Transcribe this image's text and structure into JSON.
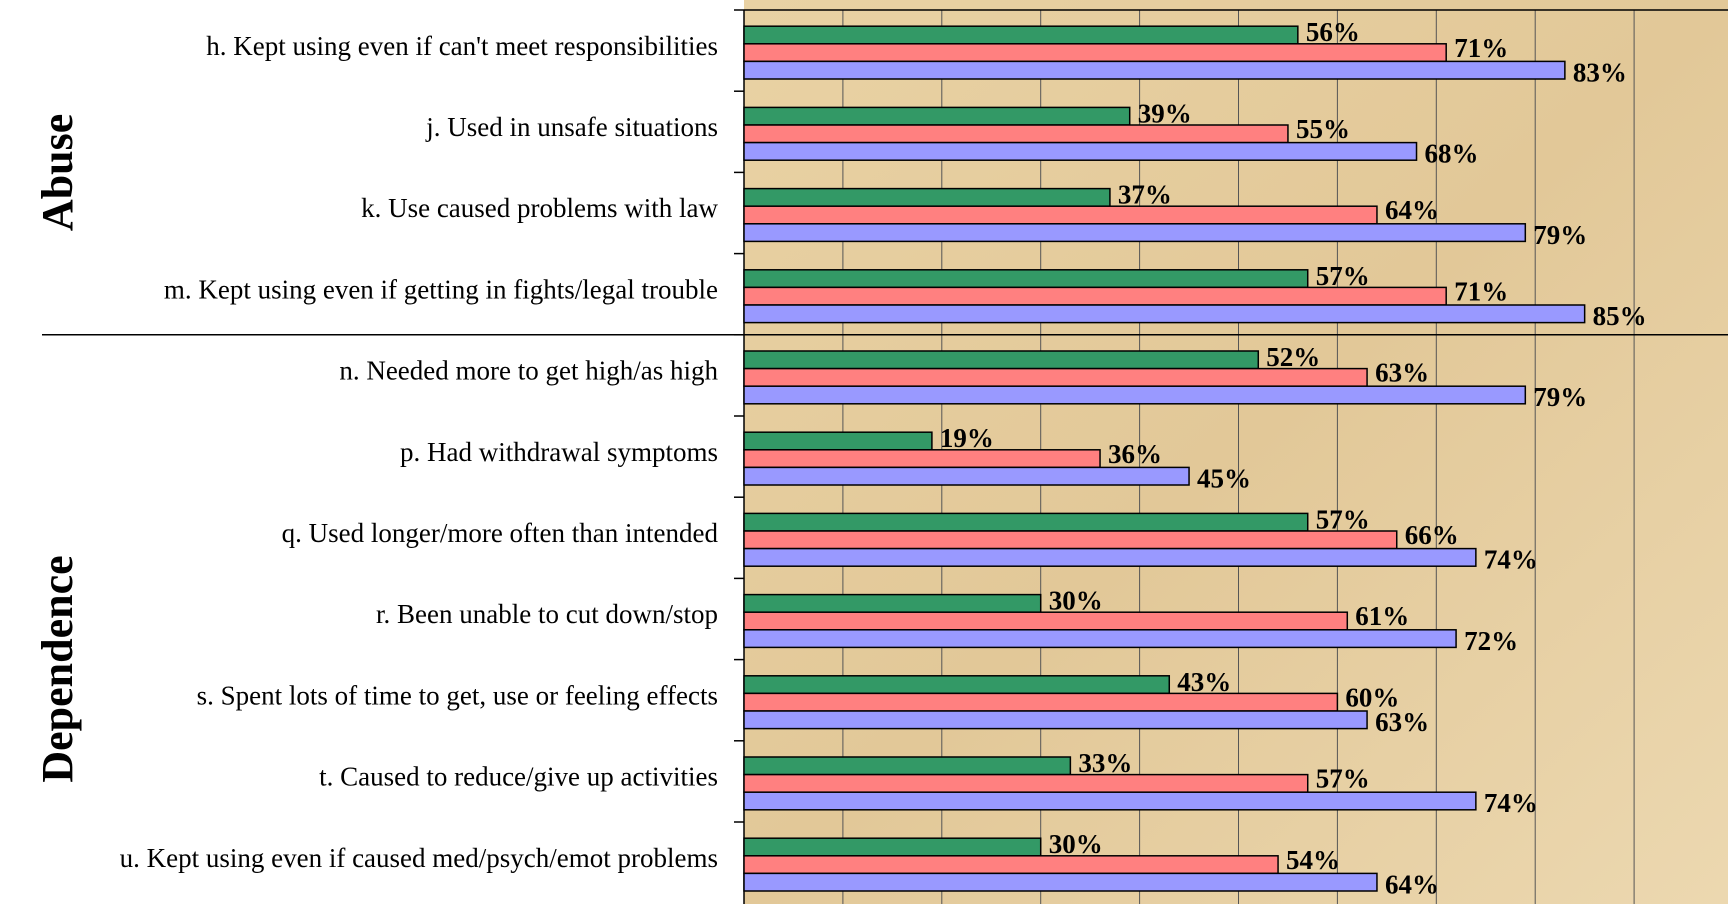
{
  "chart_data": {
    "type": "bar",
    "orientation": "horizontal",
    "annotations": [
      "Abuse",
      "Dependence"
    ],
    "categories": [
      "h. Kept using even if can't meet responsibilities",
      "j. Used in unsafe situations",
      "k. Use caused problems with law",
      "m. Kept using even if getting in fights/legal trouble",
      "n. Needed more to get high/as high",
      "p. Had withdrawal symptoms ",
      "q. Used longer/more often than intended",
      "r. Been unable to cut down/stop",
      "s. Spent lots of time to get, use or feeling effects",
      "t. Caused to reduce/give up activities",
      "u. Kept using even if caused med/psych/emot problems"
    ],
    "series": [
      {
        "color": "#339966",
        "values": [
          56,
          39,
          37,
          57,
          52,
          19,
          57,
          30,
          43,
          33,
          30
        ],
        "value_labels": [
          "56%",
          "39%",
          "37%",
          "57%",
          "52%",
          "19%",
          "57%",
          "30%",
          "43%",
          "33%",
          "30%"
        ]
      },
      {
        "color": "#ff8080",
        "values": [
          71,
          55,
          64,
          71,
          63,
          36,
          66,
          61,
          60,
          57,
          54
        ],
        "value_labels": [
          "71%",
          "55%",
          "64%",
          "71%",
          "63%",
          "36%",
          "66%",
          "61%",
          "60%",
          "57%",
          "54%"
        ]
      },
      {
        "color": "#9999ff",
        "values": [
          83,
          68,
          79,
          85,
          79,
          45,
          74,
          72,
          63,
          74,
          64
        ],
        "value_labels": [
          "83%",
          "68%",
          "79%",
          "85%",
          "79%",
          "45%",
          "74%",
          "72%",
          "63%",
          "74%",
          "64%"
        ]
      }
    ],
    "xlim": [
      0,
      100
    ],
    "xticks": [
      0,
      10,
      20,
      30,
      40,
      50,
      60,
      70,
      80,
      90
    ],
    "grid": true
  }
}
